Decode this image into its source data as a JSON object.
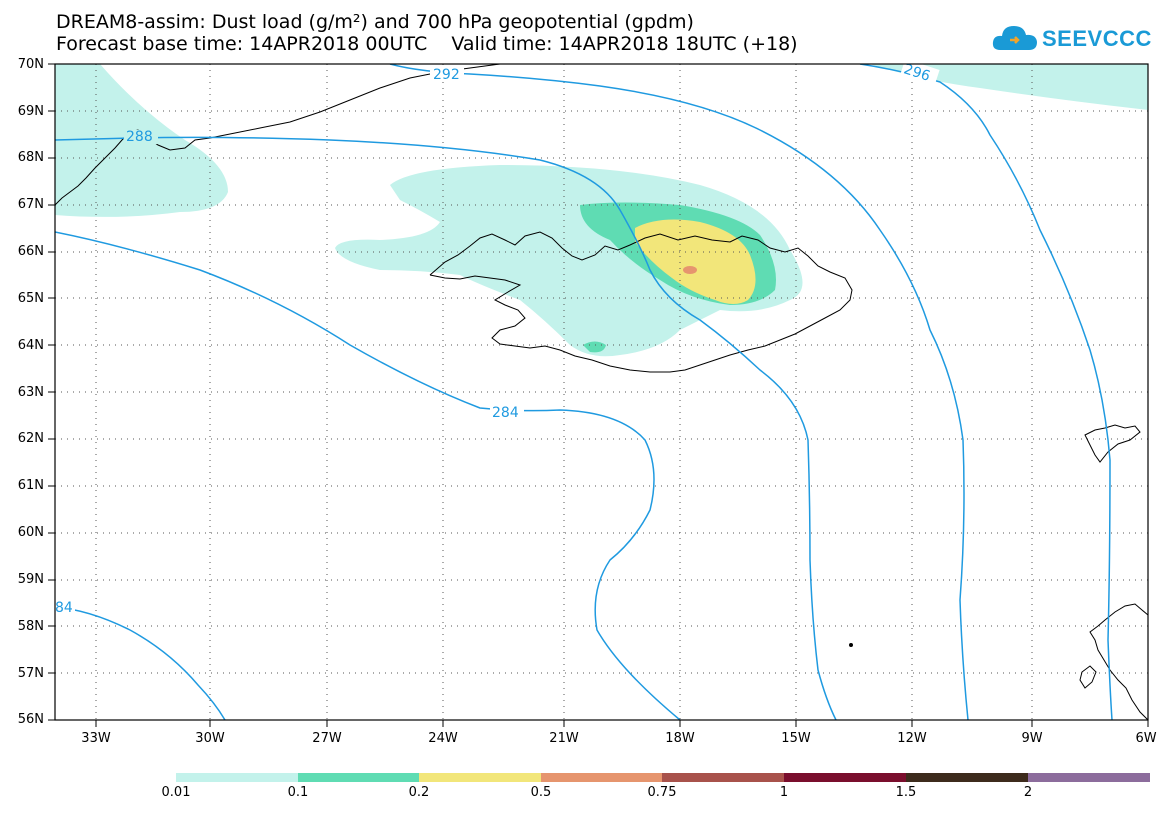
{
  "title_line1": "DREAM8-assim: Dust load (g/m²) and 700 hPa geopotential (gpdm)",
  "title_line2": "Forecast base time: 14APR2018 00UTC    Valid time: 14APR2018 18UTC (+18)",
  "logo_text": "SEEVCCC",
  "lat_labels": [
    "70N",
    "69N",
    "68N",
    "67N",
    "66N",
    "65N",
    "64N",
    "63N",
    "62N",
    "61N",
    "60N",
    "59N",
    "58N",
    "57N",
    "56N"
  ],
  "lon_labels": [
    "33W",
    "30W",
    "27W",
    "24W",
    "21W",
    "18W",
    "15W",
    "12W",
    "9W",
    "6W"
  ],
  "contour_labels": [
    "292",
    "296",
    "288",
    "284",
    "84"
  ],
  "colorbar": {
    "labels": [
      "0.01",
      "0.1",
      "0.2",
      "0.5",
      "0.75",
      "1",
      "1.5",
      "2"
    ],
    "colors": [
      "#c3f2eb",
      "#5fdcb3",
      "#f2e67a",
      "#e6956e",
      "#a8524b",
      "#7a0e2d",
      "#3d2b1c",
      "#8c6c9c"
    ]
  },
  "map": {
    "dust_colors": {
      "low": "#c3f2eb",
      "mid": "#5fdcb3",
      "high": "#f2e67a",
      "peak": "#e6956e"
    },
    "contour_color": "#1f9ae0",
    "coast_color": "#000000"
  }
}
